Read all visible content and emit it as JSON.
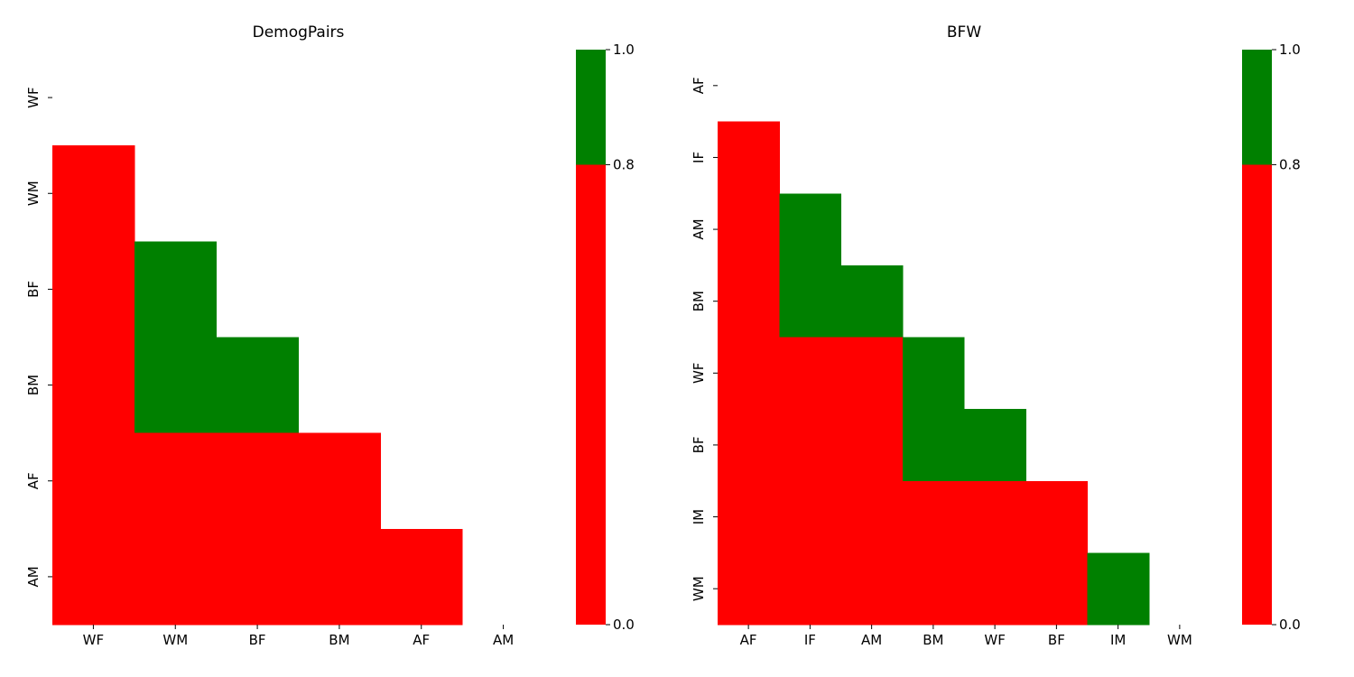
{
  "chart_data": [
    {
      "type": "heatmap",
      "title": "DemogPairs",
      "xlabel": "",
      "ylabel": "",
      "x_categories": [
        "WF",
        "WM",
        "BF",
        "BM",
        "AF",
        "AM"
      ],
      "y_categories": [
        "WF",
        "WM",
        "BF",
        "BM",
        "AF",
        "AM"
      ],
      "mask": "upper triangle including diagonal (only cells below the diagonal are shown)",
      "cells": [
        {
          "row": "WM",
          "col": "WF",
          "class": "below"
        },
        {
          "row": "BF",
          "col": "WF",
          "class": "below"
        },
        {
          "row": "BF",
          "col": "WM",
          "class": "above"
        },
        {
          "row": "BM",
          "col": "WF",
          "class": "below"
        },
        {
          "row": "BM",
          "col": "WM",
          "class": "above"
        },
        {
          "row": "BM",
          "col": "BF",
          "class": "above"
        },
        {
          "row": "AF",
          "col": "WF",
          "class": "below"
        },
        {
          "row": "AF",
          "col": "WM",
          "class": "below"
        },
        {
          "row": "AF",
          "col": "BF",
          "class": "below"
        },
        {
          "row": "AF",
          "col": "BM",
          "class": "below"
        },
        {
          "row": "AM",
          "col": "WF",
          "class": "below"
        },
        {
          "row": "AM",
          "col": "WM",
          "class": "below"
        },
        {
          "row": "AM",
          "col": "BF",
          "class": "below"
        },
        {
          "row": "AM",
          "col": "BM",
          "class": "below"
        },
        {
          "row": "AM",
          "col": "AF",
          "class": "below"
        }
      ],
      "colorbar": {
        "ticks": [
          "0.0",
          "0.8",
          "1.0"
        ],
        "bands": [
          {
            "from": 0.0,
            "to": 0.8,
            "color": "#ff0000"
          },
          {
            "from": 0.8,
            "to": 1.0,
            "color": "#008000"
          }
        ]
      }
    },
    {
      "type": "heatmap",
      "title": "BFW",
      "xlabel": "",
      "ylabel": "",
      "x_categories": [
        "AF",
        "IF",
        "AM",
        "BM",
        "WF",
        "BF",
        "IM",
        "WM"
      ],
      "y_categories": [
        "AF",
        "IF",
        "AM",
        "BM",
        "WF",
        "BF",
        "IM",
        "WM"
      ],
      "mask": "upper triangle including diagonal (only cells below the diagonal are shown)",
      "cells": [
        {
          "row": "IF",
          "col": "AF",
          "class": "below"
        },
        {
          "row": "AM",
          "col": "AF",
          "class": "below"
        },
        {
          "row": "AM",
          "col": "IF",
          "class": "above"
        },
        {
          "row": "BM",
          "col": "AF",
          "class": "below"
        },
        {
          "row": "BM",
          "col": "IF",
          "class": "above"
        },
        {
          "row": "BM",
          "col": "AM",
          "class": "above"
        },
        {
          "row": "WF",
          "col": "AF",
          "class": "below"
        },
        {
          "row": "WF",
          "col": "IF",
          "class": "below"
        },
        {
          "row": "WF",
          "col": "AM",
          "class": "below"
        },
        {
          "row": "WF",
          "col": "BM",
          "class": "above"
        },
        {
          "row": "BF",
          "col": "AF",
          "class": "below"
        },
        {
          "row": "BF",
          "col": "IF",
          "class": "below"
        },
        {
          "row": "BF",
          "col": "AM",
          "class": "below"
        },
        {
          "row": "BF",
          "col": "BM",
          "class": "above"
        },
        {
          "row": "BF",
          "col": "WF",
          "class": "above"
        },
        {
          "row": "IM",
          "col": "AF",
          "class": "below"
        },
        {
          "row": "IM",
          "col": "IF",
          "class": "below"
        },
        {
          "row": "IM",
          "col": "AM",
          "class": "below"
        },
        {
          "row": "IM",
          "col": "BM",
          "class": "below"
        },
        {
          "row": "IM",
          "col": "WF",
          "class": "below"
        },
        {
          "row": "IM",
          "col": "BF",
          "class": "below"
        },
        {
          "row": "WM",
          "col": "AF",
          "class": "below"
        },
        {
          "row": "WM",
          "col": "IF",
          "class": "below"
        },
        {
          "row": "WM",
          "col": "AM",
          "class": "below"
        },
        {
          "row": "WM",
          "col": "BM",
          "class": "below"
        },
        {
          "row": "WM",
          "col": "WF",
          "class": "below"
        },
        {
          "row": "WM",
          "col": "BF",
          "class": "below"
        },
        {
          "row": "WM",
          "col": "IM",
          "class": "above"
        }
      ],
      "colorbar": {
        "ticks": [
          "0.0",
          "0.8",
          "1.0"
        ],
        "bands": [
          {
            "from": 0.0,
            "to": 0.8,
            "color": "#ff0000"
          },
          {
            "from": 0.8,
            "to": 1.0,
            "color": "#008000"
          }
        ]
      }
    }
  ],
  "colors": {
    "below_threshold": "#ff0000",
    "above_threshold": "#008000"
  }
}
